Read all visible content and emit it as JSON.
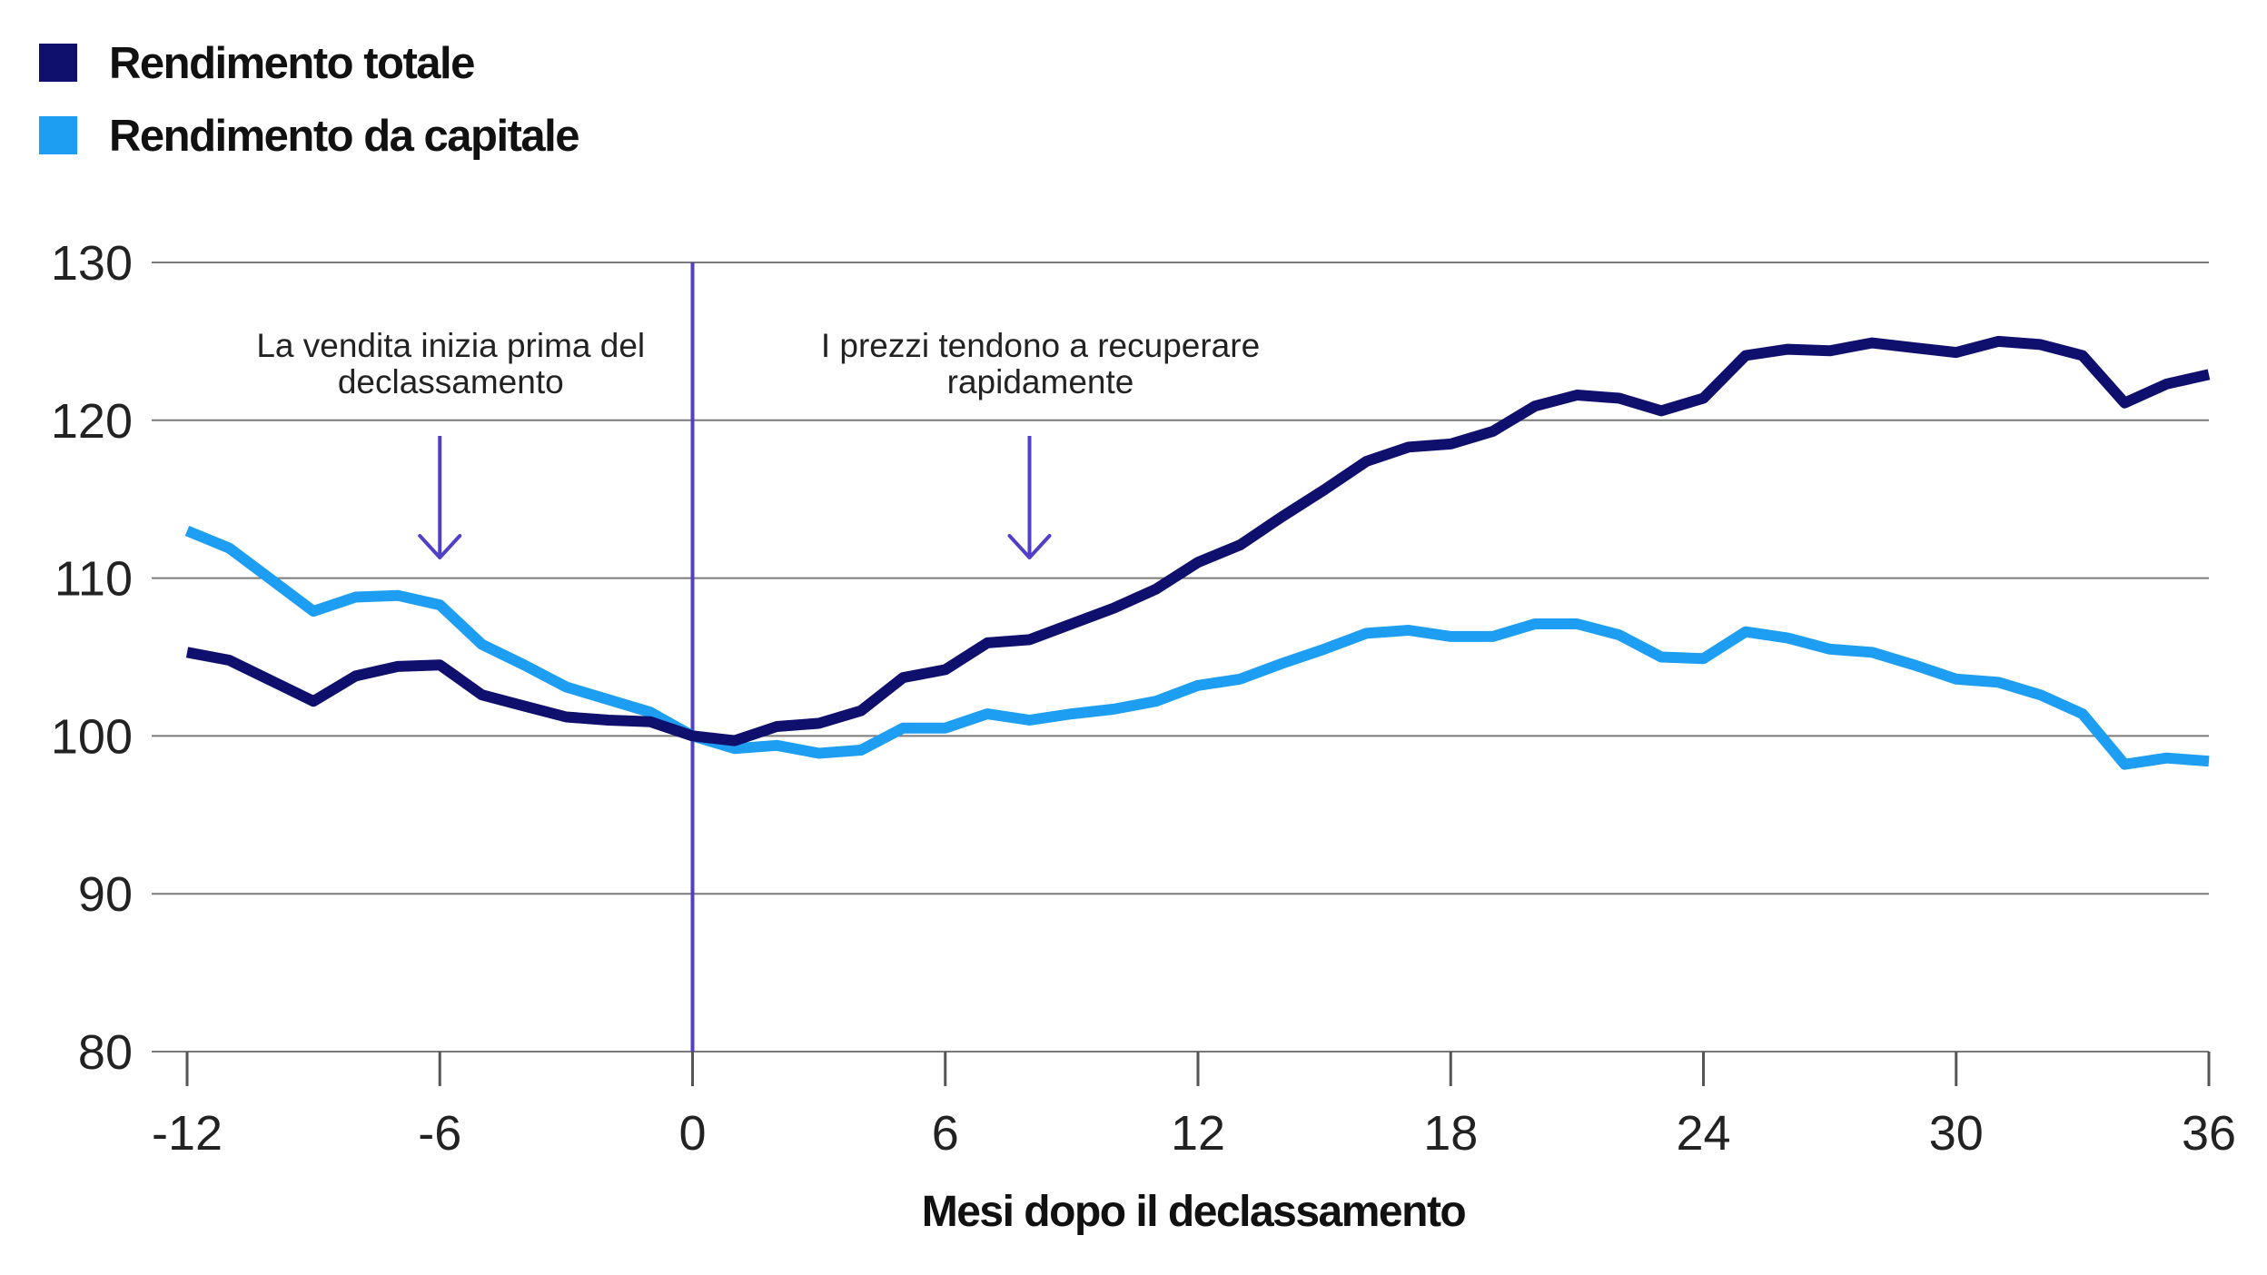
{
  "chart_data": {
    "type": "line",
    "title": "",
    "xlabel": "Mesi dopo il declassamento",
    "ylabel": "",
    "xlim": [
      -12,
      36
    ],
    "ylim": [
      80,
      130
    ],
    "x_ticks": [
      "-12",
      "-6",
      "0",
      "6",
      "12",
      "18",
      "24",
      "30",
      "36"
    ],
    "y_ticks": [
      "80",
      "90",
      "100",
      "110",
      "120",
      "130"
    ],
    "grid": "horizontal",
    "legend_position": "top-left",
    "reference_line_x": 0,
    "series": [
      {
        "name": "Rendimento totale",
        "color": "#0f0f6e",
        "x": [
          -12,
          -11,
          -10,
          -9,
          -8,
          -7,
          -6,
          -5,
          -4,
          -3,
          -2,
          -1,
          0,
          1,
          2,
          3,
          4,
          5,
          6,
          7,
          8,
          9,
          10,
          11,
          12,
          13,
          14,
          15,
          16,
          17,
          18,
          19,
          20,
          21,
          22,
          23,
          24,
          25,
          26,
          27,
          28,
          29,
          30,
          31,
          32,
          33,
          34,
          35,
          36
        ],
        "values": [
          105.3,
          104.8,
          103.5,
          102.2,
          103.8,
          104.4,
          104.5,
          102.6,
          101.9,
          101.2,
          101.0,
          100.9,
          100.0,
          99.7,
          100.6,
          100.8,
          101.6,
          103.7,
          104.2,
          105.9,
          106.1,
          107.1,
          108.1,
          109.3,
          111.0,
          112.1,
          113.9,
          115.6,
          117.4,
          118.3,
          118.5,
          119.3,
          120.9,
          121.6,
          121.4,
          120.6,
          121.4,
          124.1,
          124.5,
          124.4,
          124.9,
          124.6,
          124.3,
          125.0,
          124.8,
          124.1,
          121.1,
          122.3,
          122.9
        ]
      },
      {
        "name": "Rendimento da capitale",
        "color": "#1e9ef2",
        "x": [
          -12,
          -11,
          -10,
          -9,
          -8,
          -7,
          -6,
          -5,
          -4,
          -3,
          -2,
          -1,
          0,
          1,
          2,
          3,
          4,
          5,
          6,
          7,
          8,
          9,
          10,
          11,
          12,
          13,
          14,
          15,
          16,
          17,
          18,
          19,
          20,
          21,
          22,
          23,
          24,
          25,
          26,
          27,
          28,
          29,
          30,
          31,
          32,
          33,
          34,
          35,
          36
        ],
        "values": [
          113.0,
          111.9,
          109.9,
          107.9,
          108.8,
          108.9,
          108.3,
          105.8,
          104.5,
          103.1,
          102.3,
          101.5,
          100.0,
          99.2,
          99.4,
          98.9,
          99.1,
          100.5,
          100.5,
          101.4,
          101.0,
          101.4,
          101.7,
          102.2,
          103.2,
          103.6,
          104.6,
          105.5,
          106.5,
          106.7,
          106.3,
          106.3,
          107.1,
          107.1,
          106.4,
          105.0,
          104.9,
          106.6,
          106.2,
          105.5,
          105.3,
          104.5,
          103.6,
          103.4,
          102.6,
          101.4,
          98.2,
          98.6,
          98.4
        ]
      }
    ],
    "annotations": [
      {
        "lines": [
          "La vendita inizia prima del",
          "declassamento"
        ],
        "x": -6
      },
      {
        "lines": [
          "I prezzi tendono a recuperare",
          "rapidamente"
        ],
        "x": 8
      }
    ]
  }
}
